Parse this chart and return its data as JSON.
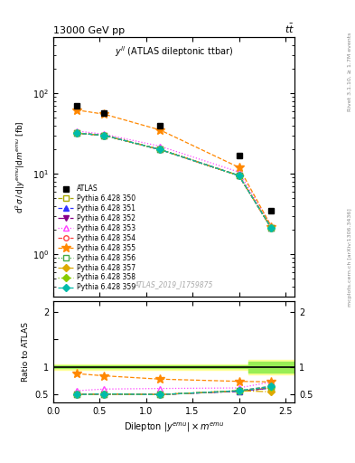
{
  "title_top": "13000 GeV pp",
  "title_top_right": "tt̅",
  "plot_title": "y^{ll} (ATLAS dileptonic ttbar)",
  "watermark": "ATLAS_2019_I1759875",
  "right_label_top": "Rivet 3.1.10, ≥ 1.7M events",
  "right_label_bottom": "mcplots.cern.ch [arXiv:1306.3436]",
  "ylabel_ratio": "Ratio to ATLAS",
  "xlim": [
    0,
    2.6
  ],
  "ylim_main": [
    0.3,
    500
  ],
  "ylim_ratio": [
    0.35,
    2.2
  ],
  "atlas_x": [
    0.25,
    0.55,
    1.15,
    2.0,
    2.35
  ],
  "atlas_y": [
    70,
    57,
    40,
    17,
    3.5
  ],
  "series": [
    {
      "label": "Pythia 6.428 350",
      "color": "#aaaa00",
      "linestyle": "--",
      "marker": "s",
      "markerfacecolor": "white",
      "x": [
        0.25,
        0.55,
        1.15,
        2.0,
        2.35
      ],
      "y": [
        32,
        30,
        20,
        9.5,
        2.1
      ]
    },
    {
      "label": "Pythia 6.428 351",
      "color": "#3333ff",
      "linestyle": "--",
      "marker": "^",
      "markerfacecolor": "#3333ff",
      "x": [
        0.25,
        0.55,
        1.15,
        2.0,
        2.35
      ],
      "y": [
        32,
        30,
        20,
        9.5,
        2.1
      ]
    },
    {
      "label": "Pythia 6.428 352",
      "color": "#880088",
      "linestyle": "-.",
      "marker": "v",
      "markerfacecolor": "#880088",
      "x": [
        0.25,
        0.55,
        1.15,
        2.0,
        2.35
      ],
      "y": [
        32,
        30,
        20,
        9.5,
        2.1
      ]
    },
    {
      "label": "Pythia 6.428 353",
      "color": "#ff44ff",
      "linestyle": ":",
      "marker": "^",
      "markerfacecolor": "white",
      "x": [
        0.25,
        0.55,
        1.15,
        2.0,
        2.35
      ],
      "y": [
        34,
        31,
        22,
        10.5,
        2.25
      ]
    },
    {
      "label": "Pythia 6.428 354",
      "color": "#ff4444",
      "linestyle": "--",
      "marker": "o",
      "markerfacecolor": "white",
      "x": [
        0.25,
        0.55,
        1.15,
        2.0,
        2.35
      ],
      "y": [
        32,
        30,
        20,
        9.5,
        2.1
      ]
    },
    {
      "label": "Pythia 6.428 355",
      "color": "#ff8800",
      "linestyle": "--",
      "marker": "*",
      "markerfacecolor": "#ff8800",
      "x": [
        0.25,
        0.55,
        1.15,
        2.0,
        2.35
      ],
      "y": [
        62,
        55,
        35,
        12,
        2.2
      ]
    },
    {
      "label": "Pythia 6.428 356",
      "color": "#44aa44",
      "linestyle": ":",
      "marker": "s",
      "markerfacecolor": "white",
      "x": [
        0.25,
        0.55,
        1.15,
        2.0,
        2.35
      ],
      "y": [
        32,
        30,
        20,
        9.5,
        2.1
      ]
    },
    {
      "label": "Pythia 6.428 357",
      "color": "#ddaa00",
      "linestyle": "-.",
      "marker": "D",
      "markerfacecolor": "#ddaa00",
      "x": [
        0.25,
        0.55,
        1.15,
        2.0,
        2.35
      ],
      "y": [
        32,
        30,
        20,
        9.5,
        2.1
      ]
    },
    {
      "label": "Pythia 6.428 358",
      "color": "#88cc00",
      "linestyle": ":",
      "marker": "D",
      "markerfacecolor": "#88cc00",
      "x": [
        0.25,
        0.55,
        1.15,
        2.0,
        2.35
      ],
      "y": [
        32,
        30,
        20,
        9.5,
        2.1
      ]
    },
    {
      "label": "Pythia 6.428 359",
      "color": "#00bbaa",
      "linestyle": "--",
      "marker": "D",
      "markerfacecolor": "#00bbaa",
      "x": [
        0.25,
        0.55,
        1.15,
        2.0,
        2.35
      ],
      "y": [
        32,
        30,
        20,
        9.5,
        2.1
      ]
    }
  ],
  "ratio_series": [
    {
      "color": "#aaaa00",
      "linestyle": "--",
      "marker": "s",
      "markerfacecolor": "white",
      "x": [
        0.25,
        0.55,
        1.15,
        2.0,
        2.35
      ],
      "y": [
        0.5,
        0.51,
        0.5,
        0.56,
        0.62
      ]
    },
    {
      "color": "#3333ff",
      "linestyle": "--",
      "marker": "^",
      "markerfacecolor": "#3333ff",
      "x": [
        0.25,
        0.55,
        1.15,
        2.0,
        2.35
      ],
      "y": [
        0.5,
        0.51,
        0.5,
        0.56,
        0.62
      ]
    },
    {
      "color": "#880088",
      "linestyle": "-.",
      "marker": "v",
      "markerfacecolor": "#880088",
      "x": [
        0.25,
        0.55,
        1.15,
        2.0,
        2.35
      ],
      "y": [
        0.5,
        0.51,
        0.5,
        0.56,
        0.62
      ]
    },
    {
      "color": "#ff44ff",
      "linestyle": ":",
      "marker": "^",
      "markerfacecolor": "white",
      "x": [
        0.25,
        0.55,
        1.15,
        2.0,
        2.35
      ],
      "y": [
        0.57,
        0.6,
        0.61,
        0.62,
        0.73
      ]
    },
    {
      "color": "#ff4444",
      "linestyle": "--",
      "marker": "o",
      "markerfacecolor": "white",
      "x": [
        0.25,
        0.55,
        1.15,
        2.0,
        2.35
      ],
      "y": [
        0.5,
        0.5,
        0.5,
        0.57,
        0.65
      ]
    },
    {
      "color": "#ff8800",
      "linestyle": "--",
      "marker": "*",
      "markerfacecolor": "#ff8800",
      "x": [
        0.25,
        0.55,
        1.15,
        2.0,
        2.35
      ],
      "y": [
        0.88,
        0.84,
        0.78,
        0.74,
        0.73
      ]
    },
    {
      "color": "#44aa44",
      "linestyle": ":",
      "marker": "s",
      "markerfacecolor": "white",
      "x": [
        0.25,
        0.55,
        1.15,
        2.0,
        2.35
      ],
      "y": [
        0.5,
        0.51,
        0.5,
        0.57,
        0.63
      ]
    },
    {
      "color": "#ddaa00",
      "linestyle": "-.",
      "marker": "D",
      "markerfacecolor": "#ddaa00",
      "x": [
        0.25,
        0.55,
        1.15,
        2.0,
        2.35
      ],
      "y": [
        0.5,
        0.51,
        0.5,
        0.57,
        0.55
      ]
    },
    {
      "color": "#88cc00",
      "linestyle": ":",
      "marker": "D",
      "markerfacecolor": "#88cc00",
      "x": [
        0.25,
        0.55,
        1.15,
        2.0,
        2.35
      ],
      "y": [
        0.5,
        0.51,
        0.5,
        0.57,
        0.63
      ]
    },
    {
      "color": "#00bbaa",
      "linestyle": "--",
      "marker": "D",
      "markerfacecolor": "#00bbaa",
      "x": [
        0.25,
        0.55,
        1.15,
        2.0,
        2.35
      ],
      "y": [
        0.5,
        0.51,
        0.5,
        0.57,
        0.65
      ]
    }
  ]
}
